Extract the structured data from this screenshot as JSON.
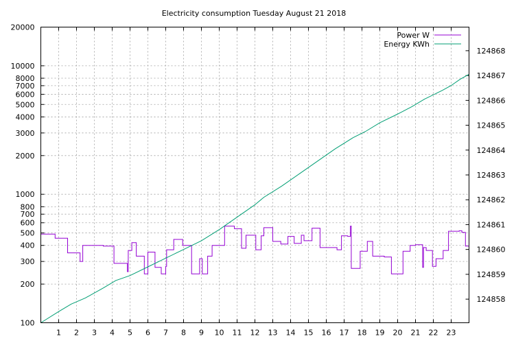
{
  "chart_data": {
    "type": "line",
    "title": "Electricity consumption Tuesday August 21 2018",
    "xlabel": "",
    "ylabel": "",
    "y2label": "",
    "grid": true,
    "legend_position": "top-right",
    "x_range": [
      0,
      24
    ],
    "y_range": [
      100,
      20000
    ],
    "y_scale": "log",
    "y2_range": [
      124857.05,
      124868.95
    ],
    "x_ticks": [
      1,
      2,
      3,
      4,
      5,
      6,
      7,
      8,
      9,
      10,
      11,
      12,
      13,
      14,
      15,
      16,
      17,
      18,
      19,
      20,
      21,
      22,
      23
    ],
    "y_ticks": [
      100,
      200,
      300,
      400,
      500,
      600,
      700,
      800,
      1000,
      2000,
      3000,
      4000,
      5000,
      6000,
      7000,
      8000,
      10000,
      20000
    ],
    "y_tick_labels": [
      "100",
      "200",
      "300",
      "400",
      "500",
      "600",
      "700",
      "800",
      "1000",
      "2000",
      "3000",
      "4000",
      "5000",
      "6000",
      "7000",
      "8000",
      "10000",
      "20000"
    ],
    "y2_ticks": [
      124858,
      124859,
      124860,
      124861,
      124862,
      124863,
      124864,
      124865,
      124866,
      124867,
      124868
    ],
    "series": [
      {
        "name": "Power W",
        "axis": "left",
        "color": "#9400d3",
        "step": true,
        "x": [
          0,
          0.8,
          1.5,
          2.2,
          2.35,
          3.5,
          4.1,
          4.85,
          4.9,
          5.1,
          5.35,
          5.8,
          6.0,
          6.4,
          6.75,
          7.0,
          7.05,
          7.45,
          7.95,
          8.45,
          8.9,
          9.05,
          9.35,
          9.6,
          10.3,
          10.85,
          11.25,
          11.5,
          12.05,
          12.35,
          12.5,
          13.0,
          13.45,
          13.85,
          14.2,
          14.6,
          14.75,
          15.2,
          15.65,
          16.6,
          16.85,
          17.2,
          17.35,
          17.4,
          17.9,
          18.3,
          18.6,
          19.25,
          19.65,
          20.3,
          20.7,
          21.0,
          21.4,
          21.45,
          21.6,
          21.95,
          22.15,
          22.55,
          22.85,
          23.45,
          23.6,
          23.8,
          24
        ],
        "y": [
          490,
          455,
          350,
          300,
          400,
          395,
          290,
          250,
          365,
          420,
          330,
          240,
          355,
          270,
          240,
          275,
          370,
          445,
          400,
          240,
          315,
          240,
          330,
          400,
          565,
          540,
          380,
          480,
          370,
          475,
          550,
          430,
          410,
          470,
          415,
          480,
          435,
          545,
          385,
          370,
          475,
          470,
          565,
          265,
          360,
          430,
          330,
          325,
          240,
          360,
          400,
          405,
          270,
          385,
          365,
          275,
          315,
          365,
          515,
          520,
          505,
          395,
          470
        ]
      },
      {
        "name": "Energy KWh",
        "axis": "right",
        "color": "#009e73",
        "step": false,
        "x": [
          0,
          1,
          1.7,
          2.5,
          3.5,
          4.2,
          5.0,
          6.0,
          7.0,
          8.0,
          9.0,
          10.0,
          11.0,
          12.0,
          12.5,
          13.5,
          14.5,
          15.5,
          16.5,
          17.5,
          18.2,
          19.0,
          20.0,
          20.8,
          21.5,
          22.5,
          23.0,
          23.5,
          24.0
        ],
        "y": [
          124857.05,
          124857.5,
          124857.8,
          124858.05,
          124858.45,
          124858.75,
          124858.95,
          124859.3,
          124859.65,
          124860.0,
          124860.35,
          124860.8,
          124861.3,
          124861.8,
          124862.1,
          124862.55,
          124863.05,
          124863.55,
          124864.05,
          124864.5,
          124864.75,
          124865.1,
          124865.45,
          124865.75,
          124866.05,
          124866.4,
          124866.6,
          124866.85,
          124867.05
        ]
      }
    ]
  }
}
